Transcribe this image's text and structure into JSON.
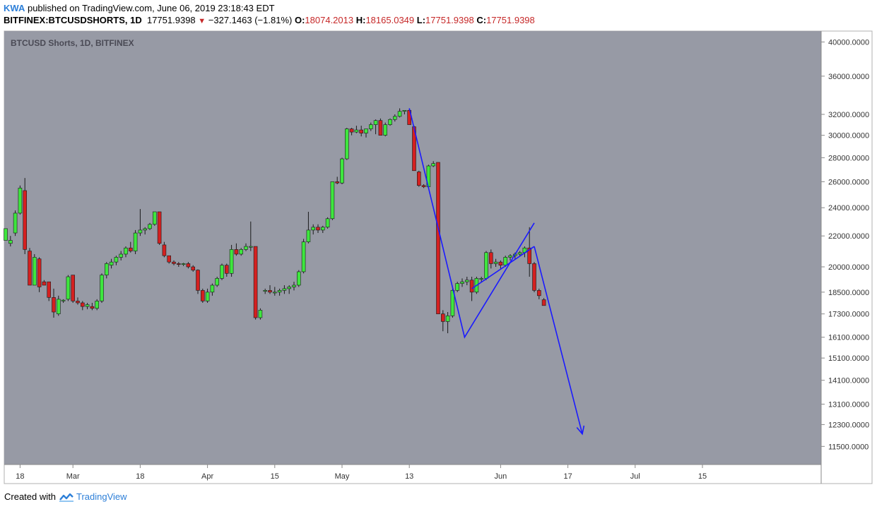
{
  "header": {
    "user": "KWA",
    "published_text": "published on TradingView.com, June 06, 2019 23:18:43 EDT",
    "symbol": "BITFINEX:BTCUSDSHORTS, 1D",
    "last_price": "17751.9398",
    "change": "−327.1463 (−1.81%)",
    "o_label": "O:",
    "o_value": "18074.2013",
    "h_label": "H:",
    "h_value": "18165.0349",
    "l_label": "L:",
    "l_value": "17751.9398",
    "c_label": "C:",
    "c_value": "17751.9398"
  },
  "footer": {
    "created_with": "Created with",
    "brand": "TradingView"
  },
  "colors": {
    "plot_bg": "#979aa5",
    "up": "#3ee63e",
    "down": "#d42020",
    "drawing": "#1a1aff",
    "red_text": "#c62828",
    "brand": "#2d7fd8"
  },
  "chart_data": {
    "type": "candlestick",
    "title": "BTCUSD Shorts, 1D, BITFINEX",
    "y_scale": "log",
    "ylim": [
      11000,
      41000
    ],
    "y_ticks": [
      "40000.0000",
      "36000.0000",
      "32000.0000",
      "30000.0000",
      "28000.0000",
      "26000.0000",
      "24000.0000",
      "22000.0000",
      "20000.0000",
      "18500.0000",
      "17300.0000",
      "16100.0000",
      "15100.0000",
      "14100.0000",
      "13100.0000",
      "12300.0000",
      "11500.0000"
    ],
    "x_ticks": [
      {
        "label": "18",
        "index": 3
      },
      {
        "label": "Mar",
        "index": 14
      },
      {
        "label": "18",
        "index": 28
      },
      {
        "label": "Apr",
        "index": 42
      },
      {
        "label": "15",
        "index": 56
      },
      {
        "label": "May",
        "index": 70
      },
      {
        "label": "13",
        "index": 84
      },
      {
        "label": "Jun",
        "index": 103
      },
      {
        "label": "17",
        "index": 117
      },
      {
        "label": "Jul",
        "index": 131
      },
      {
        "label": "15",
        "index": 145
      }
    ],
    "candles": [
      [
        21700,
        22500,
        21700,
        22500
      ],
      [
        21500,
        22000,
        21300,
        21700
      ],
      [
        22200,
        23800,
        22000,
        23600
      ],
      [
        23600,
        25700,
        23500,
        25500
      ],
      [
        25300,
        26300,
        20800,
        21100
      ],
      [
        21000,
        21200,
        18900,
        18900
      ],
      [
        18900,
        20800,
        18900,
        20600
      ],
      [
        20500,
        20600,
        18500,
        18800
      ],
      [
        19100,
        19200,
        18900,
        18900
      ],
      [
        19100,
        19100,
        18000,
        18200
      ],
      [
        18200,
        18700,
        17100,
        17400
      ],
      [
        17300,
        18300,
        17200,
        18100
      ],
      [
        18000,
        18100,
        17900,
        18050
      ],
      [
        18100,
        19500,
        18000,
        19400
      ],
      [
        19500,
        19500,
        17900,
        18000
      ],
      [
        18000,
        18200,
        17800,
        17900
      ],
      [
        17900,
        18000,
        17500,
        17700
      ],
      [
        17700,
        17900,
        17550,
        17800
      ],
      [
        17700,
        17900,
        17500,
        17600
      ],
      [
        17600,
        18100,
        17500,
        18000
      ],
      [
        18000,
        19600,
        17900,
        19500
      ],
      [
        19500,
        20300,
        19300,
        20200
      ],
      [
        20100,
        20500,
        19900,
        20300
      ],
      [
        20300,
        20700,
        20100,
        20600
      ],
      [
        20600,
        21000,
        20400,
        20800
      ],
      [
        20800,
        21300,
        20600,
        21200
      ],
      [
        21200,
        21600,
        20900,
        21000
      ],
      [
        21000,
        22400,
        20800,
        22200
      ],
      [
        22200,
        23900,
        22000,
        22400
      ],
      [
        22400,
        22600,
        22100,
        22500
      ],
      [
        22500,
        22900,
        22400,
        22800
      ],
      [
        22800,
        23700,
        22700,
        23700
      ],
      [
        23700,
        23700,
        21400,
        21500
      ],
      [
        21400,
        21600,
        20600,
        20700
      ],
      [
        20700,
        20700,
        20200,
        20300
      ],
      [
        20300,
        20400,
        20100,
        20200
      ],
      [
        20200,
        20300,
        20000,
        20150
      ],
      [
        20150,
        20250,
        20050,
        20200
      ],
      [
        20200,
        20300,
        19900,
        20000
      ],
      [
        20000,
        20100,
        19700,
        19800
      ],
      [
        19800,
        19850,
        18400,
        18600
      ],
      [
        18600,
        18700,
        17900,
        18000
      ],
      [
        18000,
        18700,
        17900,
        18500
      ],
      [
        18500,
        19000,
        18300,
        18900
      ],
      [
        18900,
        19400,
        18800,
        19300
      ],
      [
        19300,
        20200,
        19200,
        20100
      ],
      [
        20100,
        20200,
        19400,
        19600
      ],
      [
        19600,
        21400,
        19400,
        21100
      ],
      [
        21100,
        21500,
        20700,
        20800
      ],
      [
        20800,
        21200,
        20700,
        21100
      ],
      [
        21100,
        21500,
        21000,
        21300
      ],
      [
        21300,
        23000,
        21000,
        21300
      ],
      [
        21300,
        21300,
        17000,
        17100
      ],
      [
        17100,
        17600,
        17000,
        17500
      ],
      [
        18600,
        18700,
        18400,
        18600
      ],
      [
        18600,
        18900,
        18400,
        18500
      ],
      [
        18500,
        18800,
        18300,
        18500
      ],
      [
        18500,
        18700,
        18300,
        18600
      ],
      [
        18600,
        18900,
        18400,
        18700
      ],
      [
        18700,
        18900,
        18400,
        18800
      ],
      [
        18800,
        19100,
        18600,
        18900
      ],
      [
        18900,
        19800,
        18800,
        19700
      ],
      [
        19700,
        21800,
        19600,
        21600
      ],
      [
        21600,
        23700,
        21500,
        22400
      ],
      [
        22400,
        22800,
        22100,
        22600
      ],
      [
        22600,
        22800,
        22200,
        22400
      ],
      [
        22400,
        22700,
        22200,
        22600
      ],
      [
        22600,
        23300,
        22500,
        23200
      ],
      [
        23200,
        26000,
        23100,
        26000
      ],
      [
        26000,
        26400,
        25800,
        25900
      ],
      [
        25900,
        28000,
        25800,
        27900
      ],
      [
        27900,
        30700,
        27800,
        30600
      ],
      [
        30600,
        30700,
        30000,
        30300
      ],
      [
        30300,
        30900,
        30200,
        30500
      ],
      [
        30500,
        30900,
        29900,
        30200
      ],
      [
        30200,
        30600,
        29800,
        30600
      ],
      [
        30600,
        31200,
        30400,
        31000
      ],
      [
        31000,
        31500,
        30100,
        31400
      ],
      [
        31400,
        31600,
        30000,
        30000
      ],
      [
        30000,
        31200,
        29900,
        31000
      ],
      [
        31000,
        31600,
        30900,
        31500
      ],
      [
        31500,
        32000,
        31300,
        31800
      ],
      [
        31800,
        32600,
        31700,
        32300
      ],
      [
        32300,
        32400,
        32000,
        32400
      ],
      [
        32400,
        32500,
        31000,
        31000
      ],
      [
        30800,
        30900,
        26900,
        26900
      ],
      [
        26800,
        26900,
        25600,
        25700
      ],
      [
        25700,
        25800,
        25500,
        25600
      ],
      [
        25600,
        27400,
        25500,
        27300
      ],
      [
        27300,
        27700,
        27200,
        27500
      ],
      [
        27600,
        27600,
        17300,
        17300
      ],
      [
        17300,
        17500,
        16400,
        16900
      ],
      [
        16900,
        17400,
        16300,
        17200
      ],
      [
        17200,
        18700,
        17100,
        18600
      ],
      [
        18600,
        19100,
        18500,
        19000
      ],
      [
        19000,
        19300,
        18800,
        19100
      ],
      [
        19100,
        19400,
        18900,
        19200
      ],
      [
        19200,
        19400,
        18000,
        18500
      ],
      [
        18500,
        19400,
        18400,
        19300
      ],
      [
        19300,
        19400,
        19100,
        19300
      ],
      [
        19300,
        21000,
        19200,
        20900
      ],
      [
        20900,
        21100,
        19900,
        20200
      ],
      [
        20200,
        20500,
        20000,
        20300
      ],
      [
        20300,
        20400,
        19900,
        20100
      ],
      [
        20100,
        20700,
        20000,
        20600
      ],
      [
        20600,
        20800,
        20400,
        20700
      ],
      [
        20700,
        20900,
        20500,
        20800
      ],
      [
        20800,
        21000,
        20700,
        20900
      ],
      [
        20900,
        21300,
        20600,
        21200
      ],
      [
        21200,
        22600,
        19400,
        20200
      ],
      [
        20200,
        20300,
        18500,
        18600
      ],
      [
        18600,
        18700,
        18100,
        18300
      ],
      [
        18074.2013,
        18165.0349,
        17751.9398,
        17751.9398
      ]
    ],
    "drawings": [
      {
        "type": "polyline",
        "points": [
          [
            84,
            32600
          ],
          [
            95.5,
            16100
          ],
          [
            110,
            22900
          ]
        ]
      },
      {
        "type": "line",
        "points": [
          [
            97,
            18700
          ],
          [
            110,
            21300
          ]
        ]
      },
      {
        "type": "arrow",
        "points": [
          [
            110,
            21300
          ],
          [
            120,
            11950
          ]
        ]
      }
    ]
  }
}
